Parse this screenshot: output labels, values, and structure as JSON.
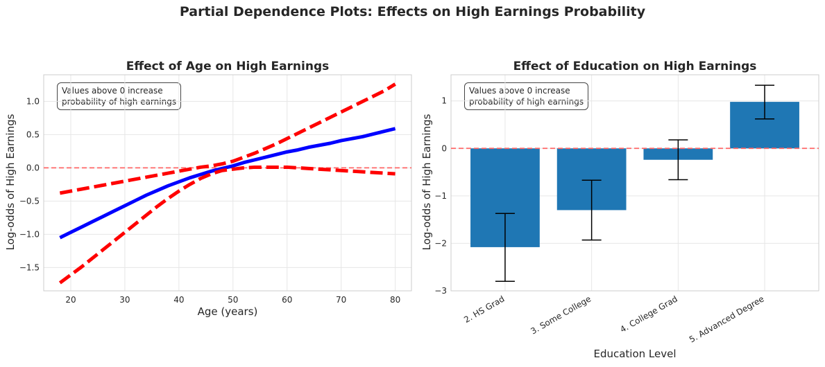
{
  "figure_title": "Partial Dependence Plots: Effects on High Earnings Probability",
  "chart_data": [
    {
      "type": "line",
      "title": "Effect of Age on High Earnings",
      "xlabel": "Age (years)",
      "ylabel": "Log-odds of High Earnings",
      "annotation": "Values above 0 increase\nprobability of high earnings",
      "xlim": [
        15,
        83
      ],
      "ylim": [
        -1.85,
        1.4
      ],
      "xticks": [
        20,
        30,
        40,
        50,
        60,
        70,
        80
      ],
      "xtick_labels": [
        "20",
        "30",
        "40",
        "50",
        "60",
        "70",
        "80"
      ],
      "yticks": [
        -1.5,
        -1.0,
        -0.5,
        0.0,
        0.5,
        1.0
      ],
      "ytick_labels": [
        "−1.5",
        "−1.0",
        "−0.5",
        "0.0",
        "0.5",
        "1.0"
      ],
      "grid": true,
      "reference_line": {
        "y": 0,
        "color": "#ff6666",
        "style": "dashed"
      },
      "x": [
        18,
        20,
        22,
        24,
        26,
        28,
        30,
        32,
        34,
        36,
        38,
        40,
        42,
        44,
        46,
        48,
        50,
        52,
        54,
        56,
        58,
        60,
        62,
        64,
        66,
        68,
        70,
        72,
        74,
        76,
        78,
        80
      ],
      "series": [
        {
          "color": "#0000ff",
          "style": "solid",
          "values": [
            -1.05,
            -0.97,
            -0.89,
            -0.81,
            -0.73,
            -0.65,
            -0.57,
            -0.49,
            -0.41,
            -0.34,
            -0.27,
            -0.21,
            -0.15,
            -0.1,
            -0.05,
            -0.01,
            0.03,
            0.08,
            0.12,
            0.16,
            0.2,
            0.24,
            0.27,
            0.31,
            0.34,
            0.37,
            0.41,
            0.44,
            0.47,
            0.51,
            0.55,
            0.59
          ]
        },
        {
          "color": "#ff0000",
          "style": "dashed",
          "values": [
            -1.73,
            -1.61,
            -1.49,
            -1.36,
            -1.23,
            -1.1,
            -0.97,
            -0.84,
            -0.71,
            -0.58,
            -0.46,
            -0.35,
            -0.25,
            -0.16,
            -0.09,
            -0.04,
            -0.02,
            0.0,
            0.01,
            0.01,
            0.01,
            0.01,
            0.0,
            -0.01,
            -0.02,
            -0.03,
            -0.04,
            -0.05,
            -0.06,
            -0.07,
            -0.08,
            -0.09
          ]
        },
        {
          "color": "#ff0000",
          "style": "dashed",
          "values": [
            -0.38,
            -0.35,
            -0.32,
            -0.29,
            -0.26,
            -0.23,
            -0.2,
            -0.17,
            -0.14,
            -0.11,
            -0.08,
            -0.05,
            -0.02,
            0.01,
            0.03,
            0.06,
            0.1,
            0.16,
            0.22,
            0.29,
            0.36,
            0.44,
            0.52,
            0.6,
            0.68,
            0.76,
            0.84,
            0.92,
            1.0,
            1.08,
            1.16,
            1.26
          ]
        }
      ]
    },
    {
      "type": "bar",
      "title": "Effect of Education on High Earnings",
      "xlabel": "Education Level",
      "ylabel": "Log-odds of High Earnings",
      "annotation": "Values above 0 increase\nprobability of high earnings",
      "categories": [
        "2. HS Grad",
        "3. Some College",
        "4. College Grad",
        "5. Advanced Degree"
      ],
      "values": [
        -2.08,
        -1.3,
        -0.24,
        0.98
      ],
      "error_low": [
        -2.8,
        -1.93,
        -0.66,
        0.62
      ],
      "error_high": [
        -1.37,
        -0.67,
        0.18,
        1.33
      ],
      "bar_color": "#1f77b4",
      "error_color": "#000000",
      "ylim": [
        -3.0,
        1.55
      ],
      "yticks": [
        -3,
        -2,
        -1,
        0,
        1
      ],
      "ytick_labels": [
        "−3",
        "−2",
        "−1",
        "0",
        "1"
      ],
      "grid": true,
      "reference_line": {
        "y": 0,
        "color": "#ff6666",
        "style": "dashed"
      }
    }
  ]
}
